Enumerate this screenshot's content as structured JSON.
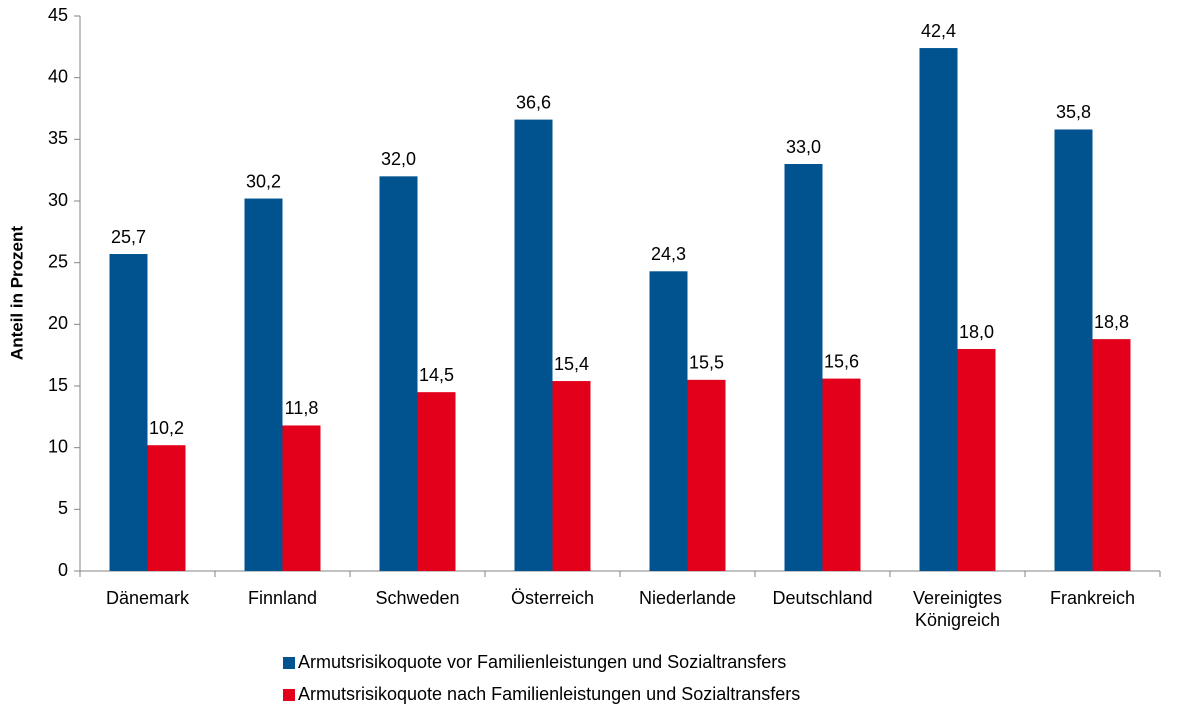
{
  "chart_data": {
    "type": "bar",
    "y_label": "Anteil in Prozent",
    "categories": [
      "Dänemark",
      "Finnland",
      "Schweden",
      "Österreich",
      "Niederlande",
      "Deutschland",
      "Vereinigtes Königreich",
      "Frankreich"
    ],
    "series": [
      {
        "name": "Armutsrisikoquote vor Familienleistungen und Sozialtransfers",
        "color": "#00538f",
        "values": [
          25.7,
          30.2,
          32.0,
          36.6,
          24.3,
          33.0,
          42.4,
          35.8
        ],
        "value_labels": [
          "25,7",
          "30,2",
          "32,0",
          "36,6",
          "24,3",
          "33,0",
          "42,4",
          "35,8"
        ]
      },
      {
        "name": "Armutsrisikoquote nach Familienleistungen und Sozialtransfers",
        "color": "#e2001a",
        "values": [
          10.2,
          11.8,
          14.5,
          15.4,
          15.5,
          15.6,
          18.0,
          18.8
        ],
        "value_labels": [
          "10,2",
          "11,8",
          "14,5",
          "15,4",
          "15,5",
          "15,6",
          "18,0",
          "18,8"
        ]
      }
    ],
    "ylim": [
      0,
      45
    ],
    "yticks": [
      0,
      5,
      10,
      15,
      20,
      25,
      30,
      35,
      40,
      45
    ],
    "grid": false,
    "legend": "bottom"
  }
}
